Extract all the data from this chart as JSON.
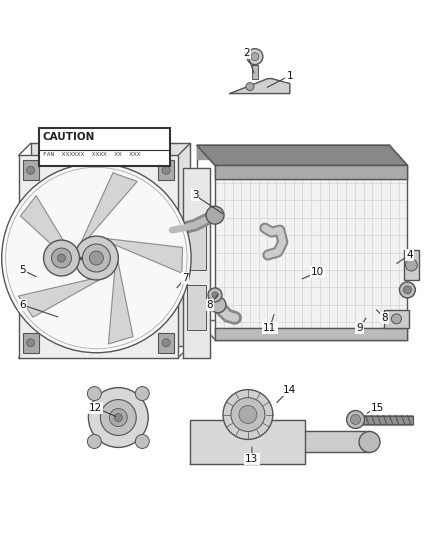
{
  "bg_color": "#ffffff",
  "lc": "#555555",
  "fig_width": 4.38,
  "fig_height": 5.33,
  "dpi": 100,
  "caution_text": "CAUTION",
  "caution_sub": "FAN  XXXXXX  XXXX  XX  XXX",
  "annotations": [
    [
      "2",
      247,
      52,
      255,
      75
    ],
    [
      "1",
      290,
      75,
      265,
      88
    ],
    [
      "3",
      195,
      195,
      225,
      215
    ],
    [
      "4",
      410,
      255,
      395,
      265
    ],
    [
      "5",
      22,
      270,
      38,
      278
    ],
    [
      "6",
      22,
      305,
      60,
      318
    ],
    [
      "7",
      185,
      278,
      175,
      290
    ],
    [
      "8",
      210,
      305,
      220,
      292
    ],
    [
      "8",
      385,
      318,
      375,
      308
    ],
    [
      "9",
      360,
      328,
      368,
      316
    ],
    [
      "10",
      318,
      272,
      300,
      280
    ],
    [
      "11",
      270,
      328,
      275,
      312
    ],
    [
      "12",
      95,
      408,
      118,
      418
    ],
    [
      "13",
      252,
      460,
      252,
      445
    ],
    [
      "14",
      290,
      390,
      275,
      405
    ],
    [
      "15",
      378,
      408,
      365,
      415
    ]
  ]
}
